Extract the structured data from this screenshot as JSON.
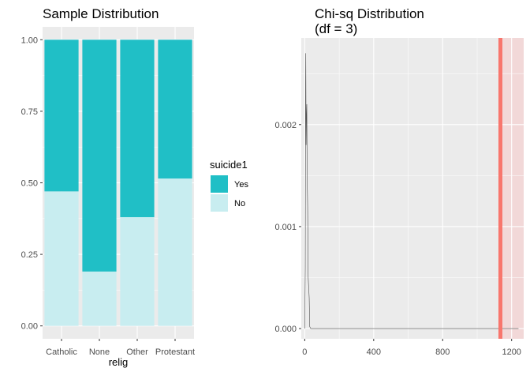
{
  "chart_data": [
    {
      "type": "bar",
      "title": "Sample Distribution",
      "xlabel": "relig",
      "ylabel": "",
      "categories": [
        "Catholic",
        "None",
        "Other",
        "Protestant"
      ],
      "ylim": [
        0,
        1
      ],
      "yticks": [
        "0.00",
        "0.25",
        "0.50",
        "0.75",
        "1.00"
      ],
      "stacked": true,
      "series": [
        {
          "name": "Yes",
          "values": [
            0.53,
            0.81,
            0.62,
            0.485
          ],
          "color": "#20BFC6"
        },
        {
          "name": "No",
          "values": [
            0.47,
            0.19,
            0.38,
            0.515
          ],
          "color": "#C8EDF0"
        }
      ],
      "legend": {
        "title": "suicide1",
        "position": "right"
      },
      "grid": true
    },
    {
      "type": "line",
      "title_lines": [
        "Chi-sq Distribution",
        "(df = 3)"
      ],
      "xlabel": "",
      "ylabel": "",
      "xticks": [
        "0",
        "400",
        "800",
        "1200"
      ],
      "yticks": [
        "0.000",
        "0.001",
        "0.002"
      ],
      "xlim": [
        -20,
        1270
      ],
      "ylim": [
        -0.0001,
        0.00285
      ],
      "observed_statistic": 1135,
      "shaded_region": [
        1135,
        1270
      ],
      "line_color": "#4d4d4d",
      "stat_color": "#F8766D",
      "shade_color": "#F2D8D8",
      "grid": true,
      "points": [
        [
          0,
          0.0
        ],
        [
          3,
          0.0006
        ],
        [
          5,
          0.0024
        ],
        [
          6,
          0.0027
        ],
        [
          8,
          0.0018
        ],
        [
          10,
          0.0021
        ],
        [
          12,
          0.0022
        ],
        [
          14,
          0.0015
        ],
        [
          17,
          0.0012
        ],
        [
          20,
          0.0005
        ],
        [
          23,
          0.0004
        ],
        [
          26,
          0.0003
        ],
        [
          29,
          2e-05
        ],
        [
          35,
          0.0
        ],
        [
          100,
          0.0
        ],
        [
          400,
          0.0
        ],
        [
          800,
          0.0
        ],
        [
          1200,
          0.0
        ],
        [
          1240,
          0.0
        ]
      ]
    }
  ]
}
